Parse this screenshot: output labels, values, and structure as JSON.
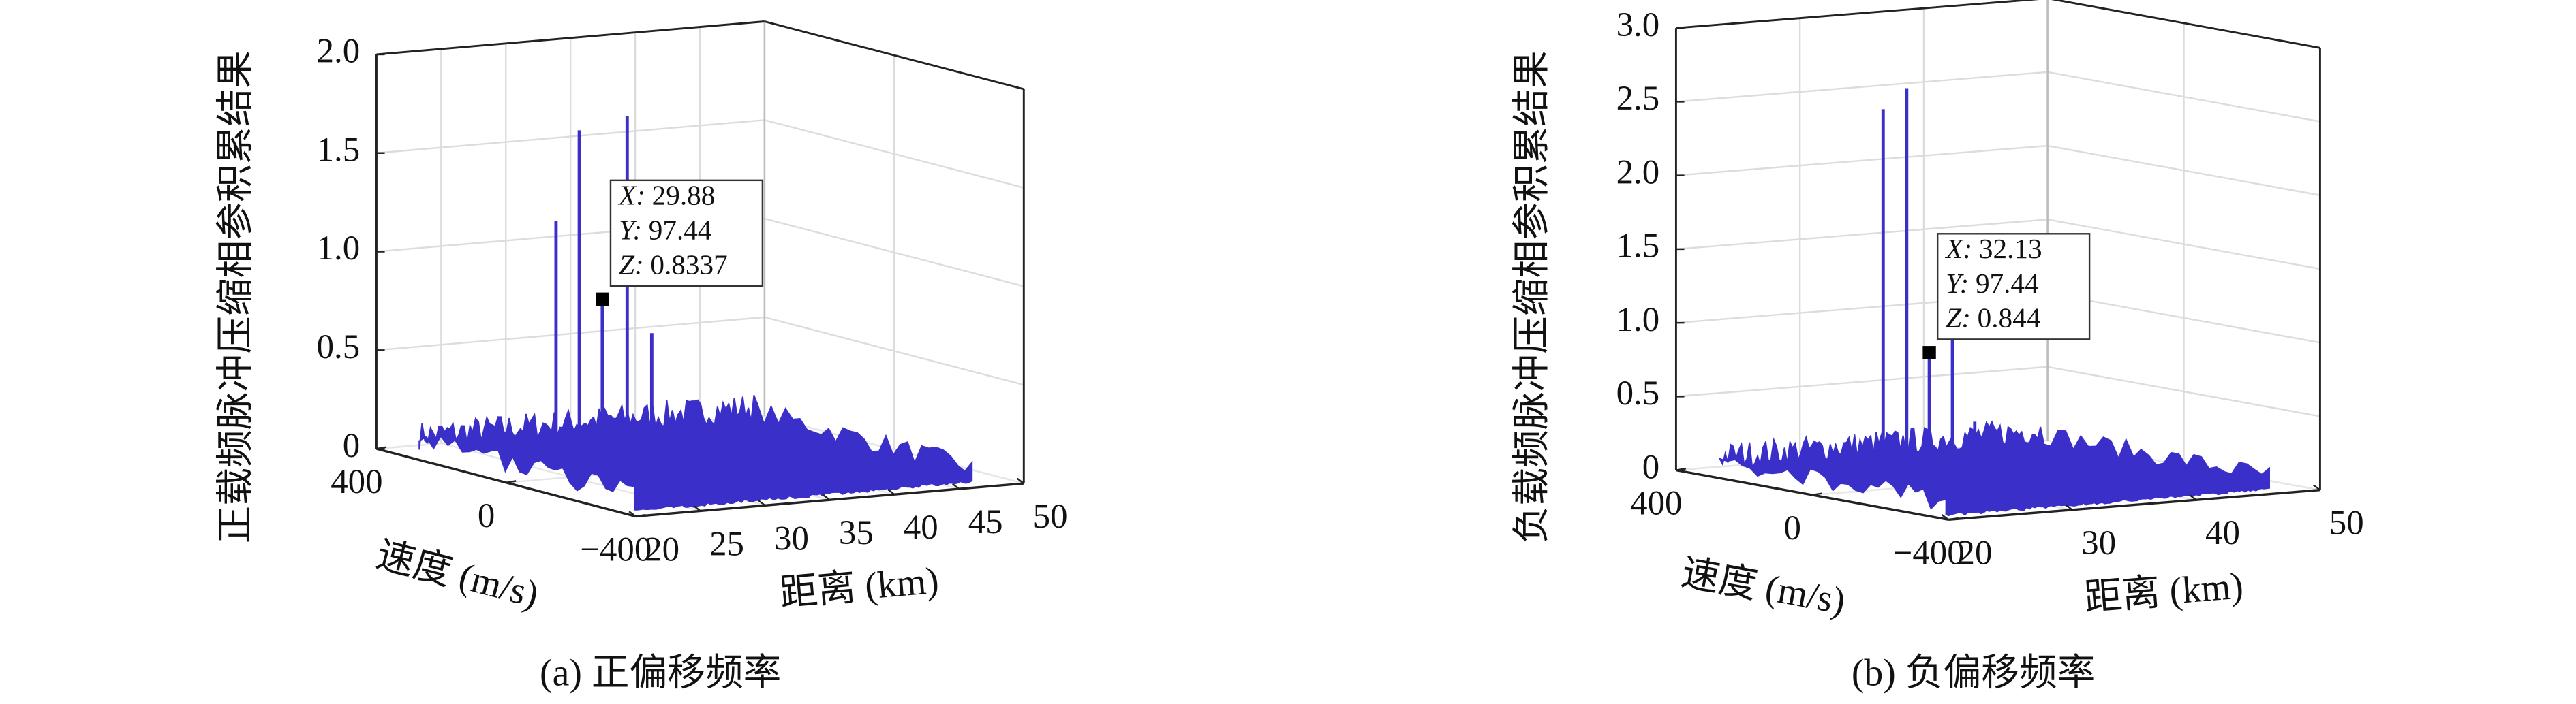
{
  "chart_data": [
    {
      "type": "surface3d",
      "caption": "(a) 正偏移频率",
      "xlabel": "距离 (km)",
      "ylabel": "速度 (m/s)",
      "zlabel": "正载频脉冲压缩相参积累结果",
      "xlim": [
        20,
        50
      ],
      "xticks": [
        20,
        25,
        30,
        35,
        40,
        45,
        50
      ],
      "ylim": [
        -400,
        400
      ],
      "yticks": [
        {
          "value": -400,
          "label": "−400"
        },
        0,
        400
      ],
      "zlim": [
        0,
        2
      ],
      "zticks": [
        0,
        0.5,
        {
          "value": 1,
          "label": "1.0"
        },
        1.5,
        {
          "value": 2,
          "label": "2.0"
        }
      ],
      "color": "#3b2fc9",
      "grid": true,
      "noise_level": 0.08,
      "peaks": {
        "x": [
          26.3,
          28.1,
          29.88,
          31.8,
          33.7
        ],
        "y": [
          97.44,
          97.44,
          97.44,
          97.44,
          97.44
        ],
        "z": [
          1.25,
          1.7,
          0.8337,
          1.75,
          0.64
        ]
      },
      "datatip": {
        "labels": [
          "X:",
          "Y:",
          "Z:"
        ],
        "values": [
          29.88,
          97.44,
          0.8337
        ]
      }
    },
    {
      "type": "surface3d",
      "caption": "(b) 负偏移频率",
      "xlabel": "距离 (km)",
      "ylabel": "速度 (m/s)",
      "zlabel": "负载频脉冲压缩相参积累结果",
      "xlim": [
        20,
        50
      ],
      "xticks": [
        20,
        30,
        40,
        50
      ],
      "ylim": [
        -400,
        400
      ],
      "yticks": [
        {
          "value": -400,
          "label": "−400"
        },
        0,
        400
      ],
      "zlim": [
        0,
        3
      ],
      "zticks": [
        0,
        0.5,
        {
          "value": 1,
          "label": "1.0"
        },
        1.5,
        {
          "value": 2,
          "label": "2.0"
        },
        2.5,
        {
          "value": 3,
          "label": "3.0"
        }
      ],
      "color": "#3b2fc9",
      "grid": true,
      "noise_level": 0.1,
      "peaks": {
        "x": [
          28.4,
          30.3,
          32.13,
          34.0,
          35.8
        ],
        "y": [
          97.44,
          97.44,
          97.44,
          97.44,
          97.44
        ],
        "z": [
          2.52,
          2.65,
          0.844,
          0.95,
          0.35
        ]
      },
      "datatip": {
        "labels": [
          "X:",
          "Y:",
          "Z:"
        ],
        "values": [
          32.13,
          97.44,
          0.844
        ]
      }
    }
  ]
}
